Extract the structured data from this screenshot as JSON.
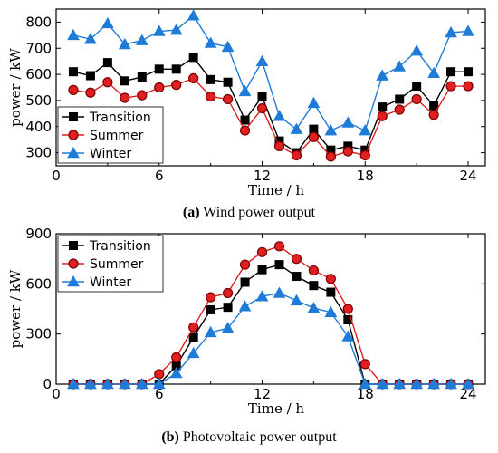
{
  "colors": {
    "transition": "#000000",
    "summer": "#e02020",
    "summer_edge": "#7a0000",
    "winter": "#1f7bd8"
  },
  "chart_data": [
    {
      "type": "line",
      "caption_letter": "(a)",
      "caption_text": "Wind power output",
      "xlabel": "Time / h",
      "ylabel": "power / kW",
      "xlim": [
        0,
        25
      ],
      "ylim": [
        250,
        850
      ],
      "xticks": [
        0,
        6,
        12,
        18,
        24
      ],
      "yticks": [
        300,
        400,
        500,
        600,
        700,
        800
      ],
      "legend_position": "bottom-left",
      "x": [
        1,
        2,
        3,
        4,
        5,
        6,
        7,
        8,
        9,
        10,
        11,
        12,
        13,
        14,
        15,
        16,
        17,
        18,
        19,
        20,
        21,
        22,
        23,
        24
      ],
      "series": [
        {
          "name": "Transition",
          "marker": "square",
          "values": [
            610,
            595,
            645,
            575,
            590,
            620,
            620,
            665,
            580,
            570,
            425,
            515,
            345,
            300,
            390,
            310,
            325,
            310,
            475,
            505,
            555,
            480,
            610,
            610
          ]
        },
        {
          "name": "Summer",
          "marker": "circle",
          "values": [
            540,
            530,
            570,
            510,
            520,
            550,
            560,
            585,
            515,
            505,
            385,
            470,
            325,
            290,
            360,
            285,
            305,
            290,
            440,
            465,
            505,
            445,
            555,
            555
          ]
        },
        {
          "name": "Winter",
          "marker": "triangle",
          "values": [
            750,
            735,
            795,
            715,
            730,
            765,
            770,
            825,
            720,
            705,
            535,
            650,
            440,
            390,
            490,
            385,
            415,
            385,
            595,
            630,
            690,
            605,
            760,
            765
          ]
        }
      ]
    },
    {
      "type": "line",
      "caption_letter": "(b)",
      "caption_text": "Photovoltaic power output",
      "xlabel": "Time / h",
      "ylabel": "power / kW",
      "xlim": [
        0,
        25
      ],
      "ylim": [
        0,
        900
      ],
      "xticks": [
        0,
        6,
        12,
        18,
        24
      ],
      "yticks": [
        0,
        300,
        600,
        900
      ],
      "legend_position": "top-left",
      "x": [
        1,
        2,
        3,
        4,
        5,
        6,
        7,
        8,
        9,
        10,
        11,
        12,
        13,
        14,
        15,
        16,
        17,
        18,
        19,
        20,
        21,
        22,
        23,
        24
      ],
      "series": [
        {
          "name": "Transition",
          "marker": "square",
          "values": [
            0,
            0,
            0,
            0,
            0,
            0,
            110,
            280,
            445,
            460,
            610,
            685,
            715,
            645,
            590,
            550,
            385,
            0,
            0,
            0,
            0,
            0,
            0,
            0
          ]
        },
        {
          "name": "Summer",
          "marker": "circle",
          "values": [
            0,
            0,
            0,
            0,
            0,
            60,
            160,
            340,
            520,
            545,
            715,
            790,
            825,
            750,
            680,
            630,
            450,
            120,
            0,
            0,
            0,
            0,
            0,
            0
          ]
        },
        {
          "name": "Winter",
          "marker": "triangle",
          "values": [
            0,
            0,
            0,
            0,
            0,
            0,
            65,
            185,
            310,
            335,
            465,
            525,
            545,
            500,
            455,
            430,
            285,
            0,
            0,
            0,
            0,
            0,
            0,
            0
          ]
        }
      ]
    }
  ]
}
